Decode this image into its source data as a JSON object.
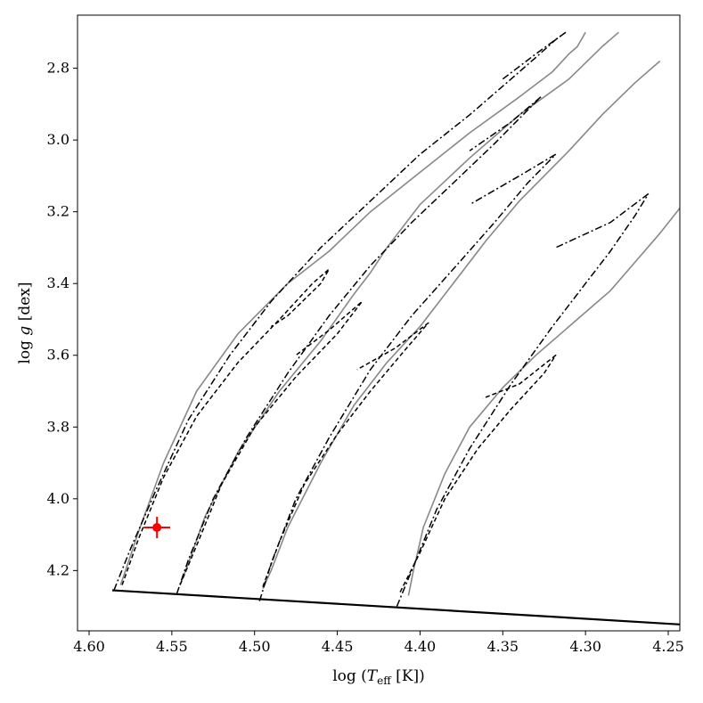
{
  "chart_data": {
    "type": "line",
    "title": "",
    "xlabel": "log (Teff [K])",
    "ylabel": "log g [dex]",
    "xlabel_parts": {
      "pre": "log (",
      "var": "T",
      "sub": "eff",
      "post": " [K])"
    },
    "ylabel_parts": {
      "pre": "log ",
      "var": "g",
      "post": " [dex]"
    },
    "xlim": [
      4.607,
      4.243
    ],
    "ylim": [
      4.368,
      2.652
    ],
    "x_inverted": true,
    "y_inverted": true,
    "grid": false,
    "legend": "none",
    "xticks": [
      4.6,
      4.55,
      4.5,
      4.45,
      4.4,
      4.35,
      4.3,
      4.25
    ],
    "xtick_labels": [
      "4.60",
      "4.55",
      "4.50",
      "4.45",
      "4.40",
      "4.35",
      "4.30",
      "4.25"
    ],
    "yticks": [
      2.8,
      3.0,
      3.2,
      3.4,
      3.6,
      3.8,
      4.0,
      4.2
    ],
    "ytick_labels": [
      "2.8",
      "3.0",
      "3.2",
      "3.4",
      "3.6",
      "3.8",
      "4.0",
      "4.2"
    ],
    "series": [
      {
        "style": "solid",
        "color": "#888888",
        "x": [
          4.581,
          4.578,
          4.57,
          4.555,
          4.535,
          4.51,
          4.48,
          4.455,
          4.43,
          4.4,
          4.37,
          4.34,
          4.32,
          4.31,
          4.305,
          4.3
        ],
        "y": [
          4.24,
          4.2,
          4.09,
          3.9,
          3.7,
          3.54,
          3.4,
          3.31,
          3.2,
          3.09,
          2.98,
          2.88,
          2.81,
          2.76,
          2.74,
          2.7
        ]
      },
      {
        "style": "solid",
        "color": "#888888",
        "x": [
          4.545,
          4.54,
          4.53,
          4.51,
          4.485,
          4.46,
          4.44,
          4.43,
          4.42,
          4.4,
          4.37,
          4.34,
          4.31,
          4.29,
          4.28
        ],
        "y": [
          4.24,
          4.18,
          4.05,
          3.87,
          3.7,
          3.56,
          3.43,
          3.37,
          3.3,
          3.18,
          3.05,
          2.93,
          2.83,
          2.74,
          2.7
        ]
      },
      {
        "style": "solid",
        "color": "#888888",
        "x": [
          4.495,
          4.49,
          4.48,
          4.46,
          4.44,
          4.42,
          4.4,
          4.39,
          4.38,
          4.36,
          4.34,
          4.31,
          4.29,
          4.27,
          4.255
        ],
        "y": [
          4.25,
          4.2,
          4.08,
          3.9,
          3.74,
          3.62,
          3.52,
          3.46,
          3.4,
          3.28,
          3.17,
          3.03,
          2.93,
          2.84,
          2.78
        ]
      },
      {
        "style": "solid",
        "color": "#888888",
        "x": [
          4.407,
          4.404,
          4.398,
          4.385,
          4.37,
          4.35,
          4.33,
          4.31,
          4.295,
          4.285,
          4.27,
          4.255,
          4.243
        ],
        "y": [
          4.27,
          4.2,
          4.08,
          3.93,
          3.8,
          3.69,
          3.6,
          3.52,
          3.46,
          3.42,
          3.34,
          3.26,
          3.19
        ]
      },
      {
        "style": "dashdot",
        "color": "#000000",
        "x": [
          4.585,
          4.575,
          4.56,
          4.54,
          4.515,
          4.49,
          4.46,
          4.43,
          4.4,
          4.37,
          4.345,
          4.33,
          4.318,
          4.312
        ],
        "y": [
          4.255,
          4.14,
          3.98,
          3.78,
          3.6,
          3.45,
          3.3,
          3.17,
          3.04,
          2.93,
          2.83,
          2.77,
          2.72,
          2.7
        ]
      },
      {
        "style": "dashdot",
        "color": "#000000",
        "x": [
          4.312,
          4.33,
          4.35
        ],
        "y": [
          2.7,
          2.76,
          2.83
        ]
      },
      {
        "style": "dashed",
        "color": "#000000",
        "x": [
          4.58,
          4.57,
          4.555,
          4.535,
          4.51,
          4.485,
          4.465,
          4.455,
          4.46,
          4.48,
          4.49
        ],
        "y": [
          4.24,
          4.11,
          3.94,
          3.77,
          3.62,
          3.5,
          3.4,
          3.36,
          3.4,
          3.49,
          3.52
        ]
      },
      {
        "style": "dashdot",
        "color": "#000000",
        "x": [
          4.547,
          4.54,
          4.525,
          4.505,
          4.48,
          4.455,
          4.43,
          4.405,
          4.38,
          4.355,
          4.34,
          4.327
        ],
        "y": [
          4.265,
          4.17,
          4.0,
          3.83,
          3.65,
          3.49,
          3.35,
          3.23,
          3.12,
          3.01,
          2.94,
          2.88
        ]
      },
      {
        "style": "dashdot",
        "color": "#000000",
        "x": [
          4.327,
          4.345,
          4.37
        ],
        "y": [
          2.88,
          2.95,
          3.03
        ]
      },
      {
        "style": "dashed",
        "color": "#000000",
        "x": [
          4.545,
          4.535,
          4.52,
          4.5,
          4.475,
          4.45,
          4.435,
          4.455,
          4.475
        ],
        "y": [
          4.24,
          4.13,
          3.96,
          3.8,
          3.66,
          3.54,
          3.45,
          3.53,
          3.6
        ]
      },
      {
        "style": "dashdot",
        "color": "#000000",
        "x": [
          4.497,
          4.49,
          4.475,
          4.455,
          4.43,
          4.405,
          4.38,
          4.355,
          4.335,
          4.318
        ],
        "y": [
          4.285,
          4.18,
          4.0,
          3.83,
          3.64,
          3.49,
          3.36,
          3.23,
          3.12,
          3.04
        ]
      },
      {
        "style": "dashdot",
        "color": "#000000",
        "x": [
          4.318,
          4.34,
          4.37
        ],
        "y": [
          3.04,
          3.1,
          3.18
        ]
      },
      {
        "style": "dashed",
        "color": "#000000",
        "x": [
          4.495,
          4.485,
          4.47,
          4.45,
          4.43,
          4.41,
          4.395,
          4.415,
          4.438
        ],
        "y": [
          4.245,
          4.12,
          3.96,
          3.82,
          3.7,
          3.59,
          3.51,
          3.58,
          3.64
        ]
      },
      {
        "style": "dashdot",
        "color": "#000000",
        "x": [
          4.414,
          4.405,
          4.39,
          4.37,
          4.345,
          4.32,
          4.3,
          4.285,
          4.27,
          4.262
        ],
        "y": [
          4.3,
          4.2,
          4.03,
          3.86,
          3.68,
          3.52,
          3.4,
          3.31,
          3.21,
          3.15
        ]
      },
      {
        "style": "dashdot",
        "color": "#000000",
        "x": [
          4.262,
          4.285,
          4.318
        ],
        "y": [
          3.15,
          3.23,
          3.3
        ]
      },
      {
        "style": "dashed",
        "color": "#000000",
        "x": [
          4.412,
          4.4,
          4.385,
          4.365,
          4.345,
          4.325,
          4.318,
          4.34,
          4.362
        ],
        "y": [
          4.26,
          4.15,
          4.0,
          3.86,
          3.75,
          3.65,
          3.6,
          3.68,
          3.72
        ]
      },
      {
        "style": "zams",
        "color": "#000000",
        "x": [
          4.586,
          4.243
        ],
        "y": [
          4.255,
          4.35
        ]
      }
    ],
    "observed_point": {
      "x": 4.559,
      "y": 4.08,
      "x_err": 0.008,
      "y_err": 0.03,
      "color": "#ff0000"
    }
  }
}
